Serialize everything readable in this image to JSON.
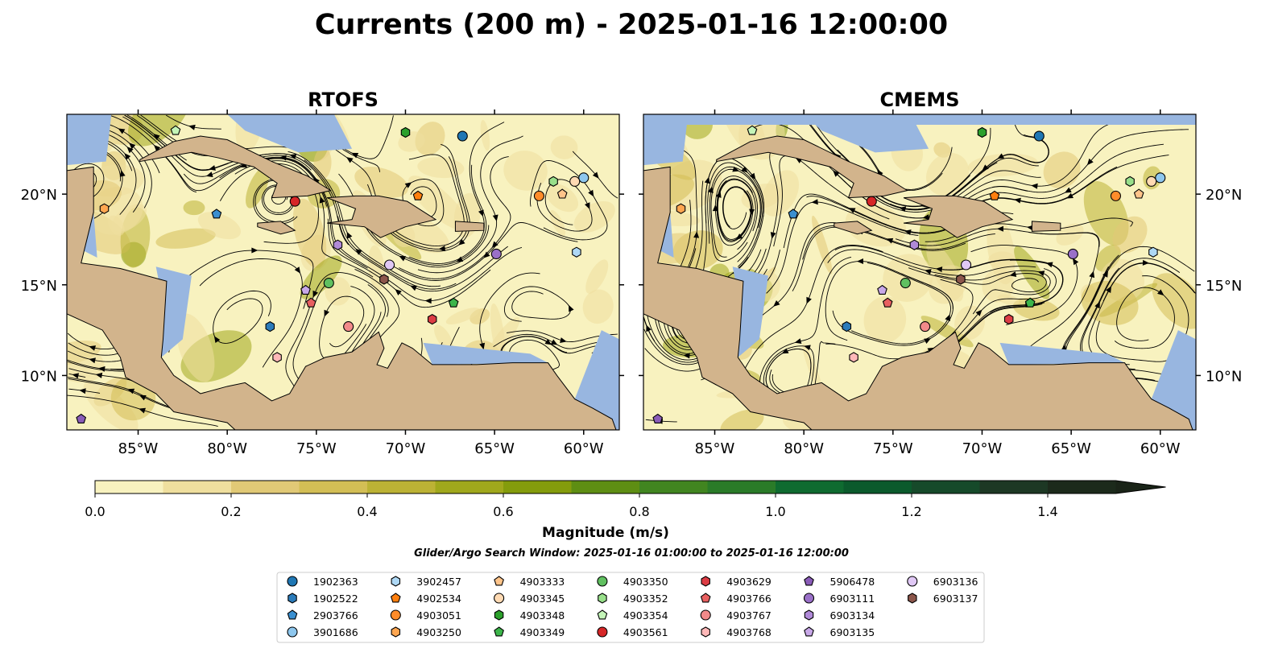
{
  "title": "Currents (200 m) - 2025-01-16 12:00:00",
  "panels": [
    {
      "title": "RTOFS"
    },
    {
      "title": "CMEMS"
    }
  ],
  "map": {
    "lon_range": [
      -89,
      -58
    ],
    "lat_range": [
      7.0,
      24.4
    ],
    "lon_ticks": [
      {
        "value": -85,
        "label": "85°W"
      },
      {
        "value": -80,
        "label": "80°W"
      },
      {
        "value": -75,
        "label": "75°W"
      },
      {
        "value": -70,
        "label": "70°W"
      },
      {
        "value": -65,
        "label": "65°W"
      },
      {
        "value": -60,
        "label": "60°W"
      }
    ],
    "lat_ticks": [
      {
        "value": 20,
        "label": "20°N"
      },
      {
        "value": 15,
        "label": "15°N"
      },
      {
        "value": 10,
        "label": "10°N"
      }
    ],
    "colors": {
      "land": "#d2b48c",
      "shallow": "#98b6e0",
      "ocean_low": "#f8f2bf"
    }
  },
  "colorbar": {
    "label": "Magnitude (m/s)",
    "min": 0.0,
    "max": 1.5,
    "step": 0.1,
    "extend": "max",
    "ticks": [
      "0.0",
      "0.2",
      "0.4",
      "0.6",
      "0.8",
      "1.0",
      "1.2",
      "1.4"
    ],
    "colors": [
      "#f8f2bf",
      "#efdf9e",
      "#e1c976",
      "#d3be55",
      "#bcb235",
      "#a0a81c",
      "#849c0c",
      "#5e8e13",
      "#418520",
      "#2a7b28",
      "#0f6b30",
      "#0b5a2c",
      "#164a2a",
      "#1d3824",
      "#1c2a1b"
    ],
    "extend_color": "#1a2418"
  },
  "search_window": "Glider/Argo Search Window: 2025-01-16 01:00:00 to 2025-01-16 12:00:00",
  "floats": [
    {
      "id": "1902363",
      "marker": "circle",
      "color": "#1f77b4",
      "lon": -66.8,
      "lat": 23.2
    },
    {
      "id": "1902522",
      "marker": "hexagon",
      "color": "#2b7bba",
      "lon": -77.6,
      "lat": 12.7
    },
    {
      "id": "2903766",
      "marker": "pentagon",
      "color": "#3a8fd0",
      "lon": -80.6,
      "lat": 18.9
    },
    {
      "id": "3901686",
      "marker": "circle",
      "color": "#8ec7ee",
      "lon": -60.0,
      "lat": 20.9
    },
    {
      "id": "3902457",
      "marker": "hexagon",
      "color": "#aed8f5",
      "lon": -60.4,
      "lat": 16.8
    },
    {
      "id": "4902534",
      "marker": "pentagon",
      "color": "#ff7f0e",
      "lon": -69.3,
      "lat": 19.9
    },
    {
      "id": "4903051",
      "marker": "circle",
      "color": "#ff8c2a",
      "lon": -62.5,
      "lat": 19.9
    },
    {
      "id": "4903250",
      "marker": "hexagon",
      "color": "#ffa650",
      "lon": -86.9,
      "lat": 19.2
    },
    {
      "id": "4903333",
      "marker": "pentagon",
      "color": "#ffc48a",
      "lon": -61.2,
      "lat": 20.0
    },
    {
      "id": "4903345",
      "marker": "circle",
      "color": "#ffdab3",
      "lon": -60.5,
      "lat": 20.7
    },
    {
      "id": "4903348",
      "marker": "hexagon",
      "color": "#2ca02c",
      "lon": -70.0,
      "lat": 23.4
    },
    {
      "id": "4903349",
      "marker": "pentagon",
      "color": "#3cb54a",
      "lon": -67.3,
      "lat": 14.0
    },
    {
      "id": "4903350",
      "marker": "circle",
      "color": "#60c060",
      "lon": -74.3,
      "lat": 15.1
    },
    {
      "id": "4903352",
      "marker": "hexagon",
      "color": "#98df8a",
      "lon": -61.7,
      "lat": 20.7
    },
    {
      "id": "4903354",
      "marker": "pentagon",
      "color": "#c4f5b8",
      "lon": -82.9,
      "lat": 23.5
    },
    {
      "id": "4903561",
      "marker": "circle",
      "color": "#d62728",
      "lon": -76.2,
      "lat": 19.6
    },
    {
      "id": "4903629",
      "marker": "hexagon",
      "color": "#dc3c44",
      "lon": -68.5,
      "lat": 13.1
    },
    {
      "id": "4903766",
      "marker": "pentagon",
      "color": "#e86060",
      "lon": -75.3,
      "lat": 14.0
    },
    {
      "id": "4903767",
      "marker": "circle",
      "color": "#f28a8a",
      "lon": -73.2,
      "lat": 12.7
    },
    {
      "id": "4903768",
      "marker": "hexagon",
      "color": "#ffb8b8",
      "lon": -77.2,
      "lat": 11.0
    },
    {
      "id": "5906478",
      "marker": "pentagon",
      "color": "#8a5cb8",
      "lon": -88.2,
      "lat": 7.6
    },
    {
      "id": "6903111",
      "marker": "circle",
      "color": "#9a70c8",
      "lon": -64.9,
      "lat": 16.7
    },
    {
      "id": "6903134",
      "marker": "hexagon",
      "color": "#b08ad8",
      "lon": -73.8,
      "lat": 17.2
    },
    {
      "id": "6903135",
      "marker": "pentagon",
      "color": "#c8a8e8",
      "lon": -75.6,
      "lat": 14.7
    },
    {
      "id": "6903136",
      "marker": "circle",
      "color": "#e0c8f5",
      "lon": -70.9,
      "lat": 16.1
    },
    {
      "id": "6903137",
      "marker": "hexagon",
      "color": "#8c564b",
      "lon": -71.2,
      "lat": 15.3
    }
  ]
}
